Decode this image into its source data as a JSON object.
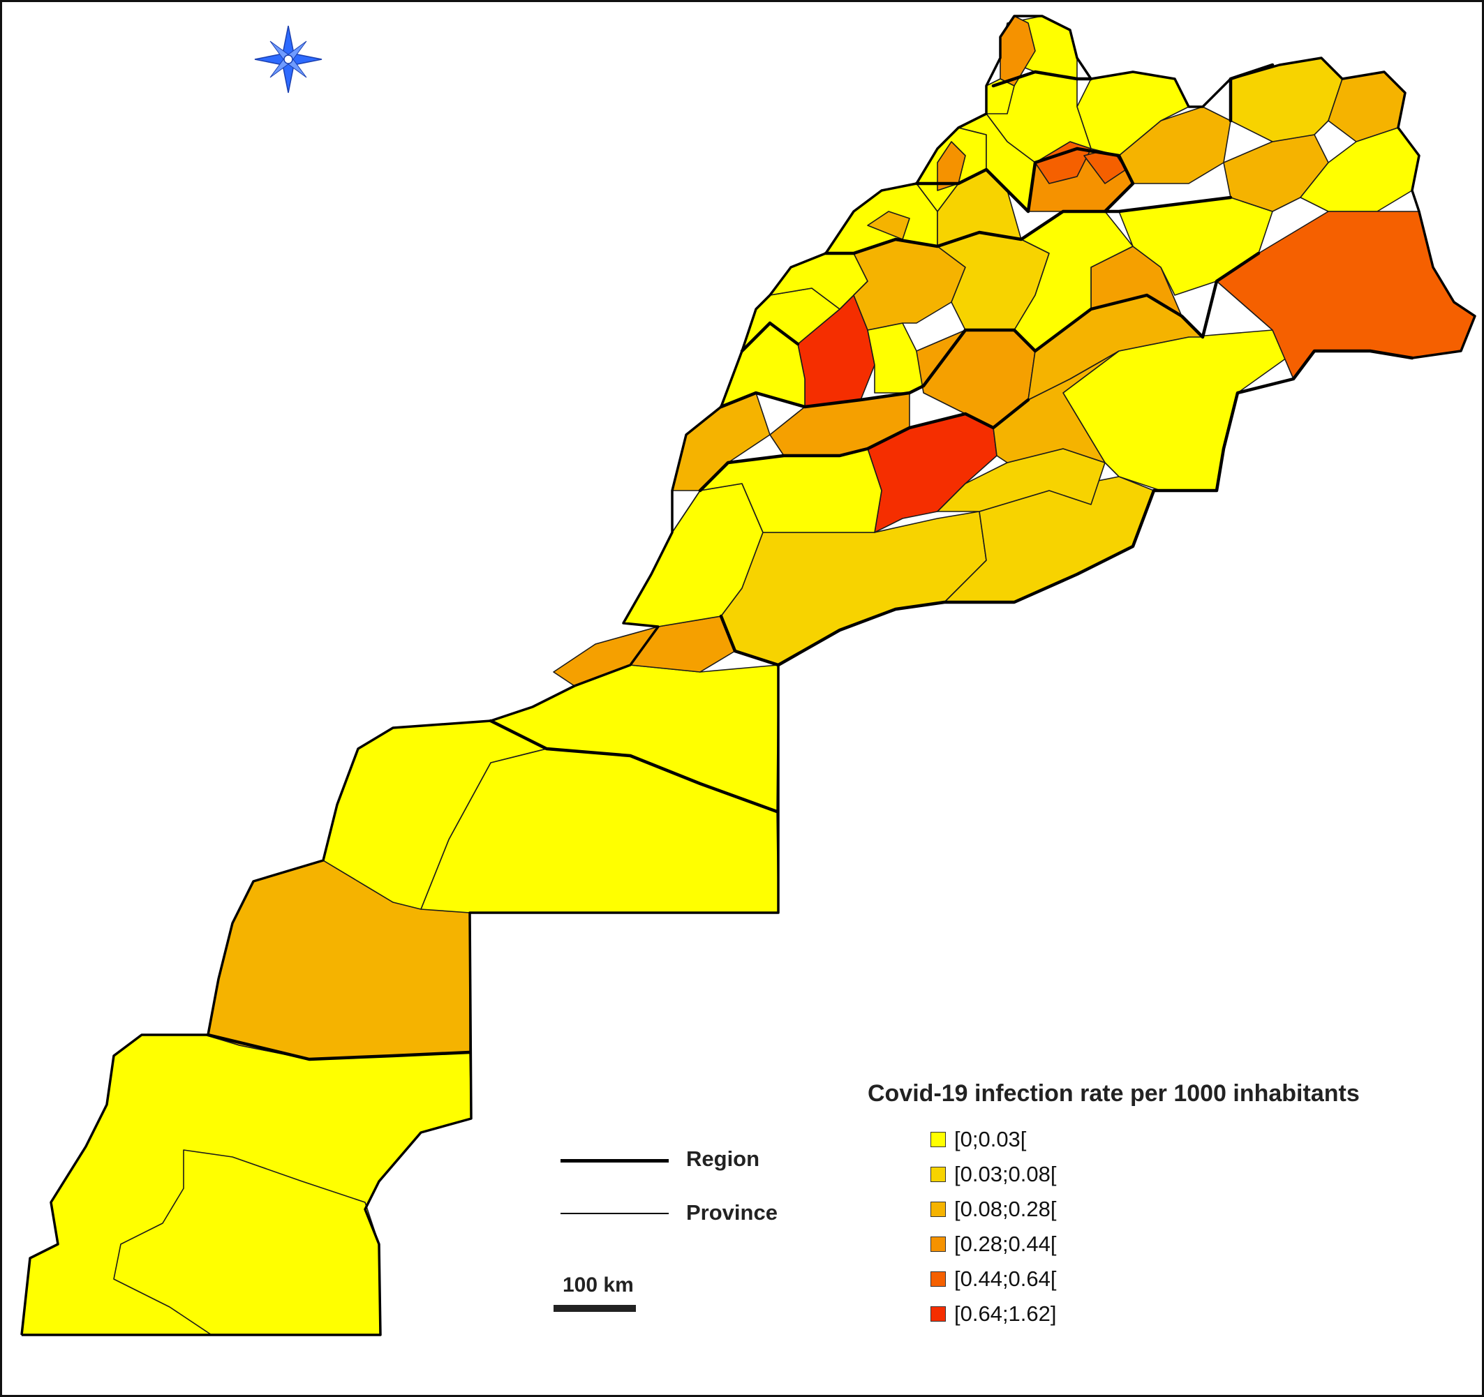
{
  "legend": {
    "title": "Covid-19 infection rate per 1000 inhabitants",
    "classes": [
      {
        "label": "[0;0.03[",
        "color": "#FFFF00"
      },
      {
        "label": "[0.03;0.08[",
        "color": "#F7D300"
      },
      {
        "label": "[0.08;0.28[",
        "color": "#F5B300"
      },
      {
        "label": "[0.28;0.44[",
        "color": "#F59200"
      },
      {
        "label": "[0.44;0.64[",
        "color": "#F56000"
      },
      {
        "label": "[0.64;1.62]",
        "color": "#F52E00"
      }
    ]
  },
  "line_legend": {
    "region_label": "Region",
    "province_label": "Province"
  },
  "scale": {
    "label": "100 km"
  },
  "north_arrow": {
    "icon": "compass-rose-icon",
    "color": "#2E6BFF"
  }
}
